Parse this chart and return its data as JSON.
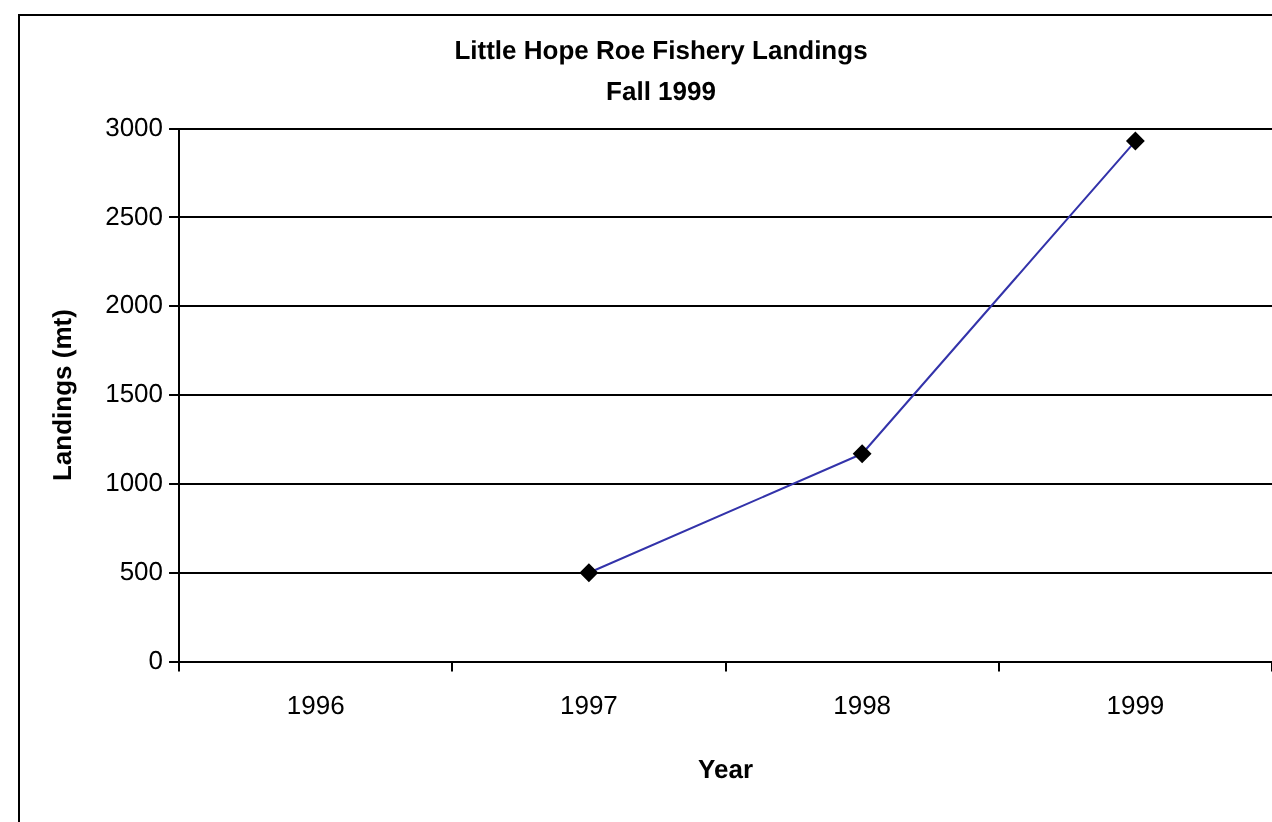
{
  "chart_data": {
    "type": "line",
    "title": [
      "Little Hope Roe Fishery Landings",
      "Fall 1999"
    ],
    "xlabel": "Year",
    "ylabel": "Landings (mt)",
    "categories": [
      "1996",
      "1997",
      "1998",
      "1999"
    ],
    "series": [
      {
        "color": "#3333aa",
        "values": [
          null,
          500,
          1170,
          2930
        ]
      }
    ],
    "ylim": [
      0,
      3000
    ],
    "yticks": [
      0,
      500,
      1000,
      1500,
      2000,
      2500,
      3000
    ],
    "grid": "y",
    "legend": false,
    "marker": "diamond",
    "line_style": "solid"
  }
}
